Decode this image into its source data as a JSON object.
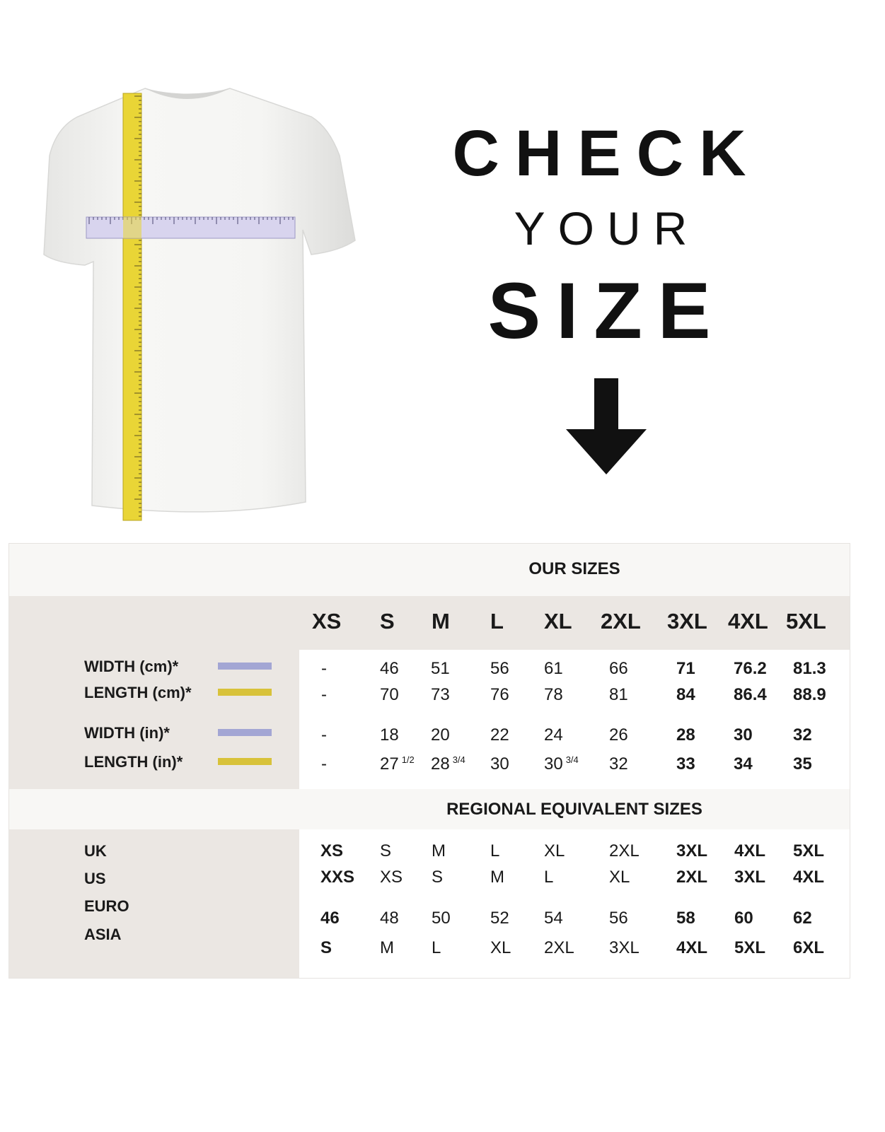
{
  "heading": {
    "line1": "CHECK",
    "line2": "YOUR",
    "line3": "SIZE"
  },
  "icons": {
    "arrow": "arrow-down-icon",
    "shirt": "t-shirt-with-tape-measures"
  },
  "colors": {
    "width_swatch": "#a3a6d4",
    "length_swatch": "#d8c23a",
    "table_gray": "#ebe7e3"
  },
  "our_sizes": {
    "title": "OUR SIZES",
    "sizes": [
      "XS",
      "S",
      "M",
      "L",
      "XL",
      "2XL",
      "3XL",
      "4XL",
      "5XL"
    ],
    "rows": [
      {
        "label": "WIDTH (cm)*",
        "swatch": "width",
        "values": [
          "-",
          "46",
          "51",
          "56",
          "61",
          "66",
          "71",
          "76.2",
          "81.3"
        ]
      },
      {
        "label": "LENGTH (cm)*",
        "swatch": "length",
        "values": [
          "-",
          "70",
          "73",
          "76",
          "78",
          "81",
          "84",
          "86.4",
          "88.9"
        ]
      },
      {
        "label": "WIDTH (in)*",
        "swatch": "width",
        "values": [
          "-",
          "18",
          "20",
          "22",
          "24",
          "26",
          "28",
          "30",
          "32"
        ]
      },
      {
        "label": "LENGTH (in)*",
        "swatch": "length",
        "values": [
          "-",
          "27",
          "28",
          "30",
          "30",
          "32",
          "33",
          "34",
          "35"
        ],
        "fractions": [
          "",
          "1/2",
          "3/4",
          "",
          "3/4",
          "",
          "",
          "",
          ""
        ]
      }
    ]
  },
  "regional": {
    "title": "REGIONAL EQUIVALENT SIZES",
    "labels": [
      "UK",
      "US",
      "EURO",
      "ASIA"
    ],
    "rows": [
      [
        "XS",
        "S",
        "M",
        "L",
        "XL",
        "2XL",
        "3XL",
        "4XL",
        "5XL"
      ],
      [
        "XXS",
        "XS",
        "S",
        "M",
        "L",
        "XL",
        "2XL",
        "3XL",
        "4XL"
      ],
      [
        "46",
        "48",
        "50",
        "52",
        "54",
        "56",
        "58",
        "60",
        "62"
      ],
      [
        "S",
        "M",
        "L",
        "XL",
        "2XL",
        "3XL",
        "4XL",
        "5XL",
        "6XL"
      ]
    ]
  }
}
